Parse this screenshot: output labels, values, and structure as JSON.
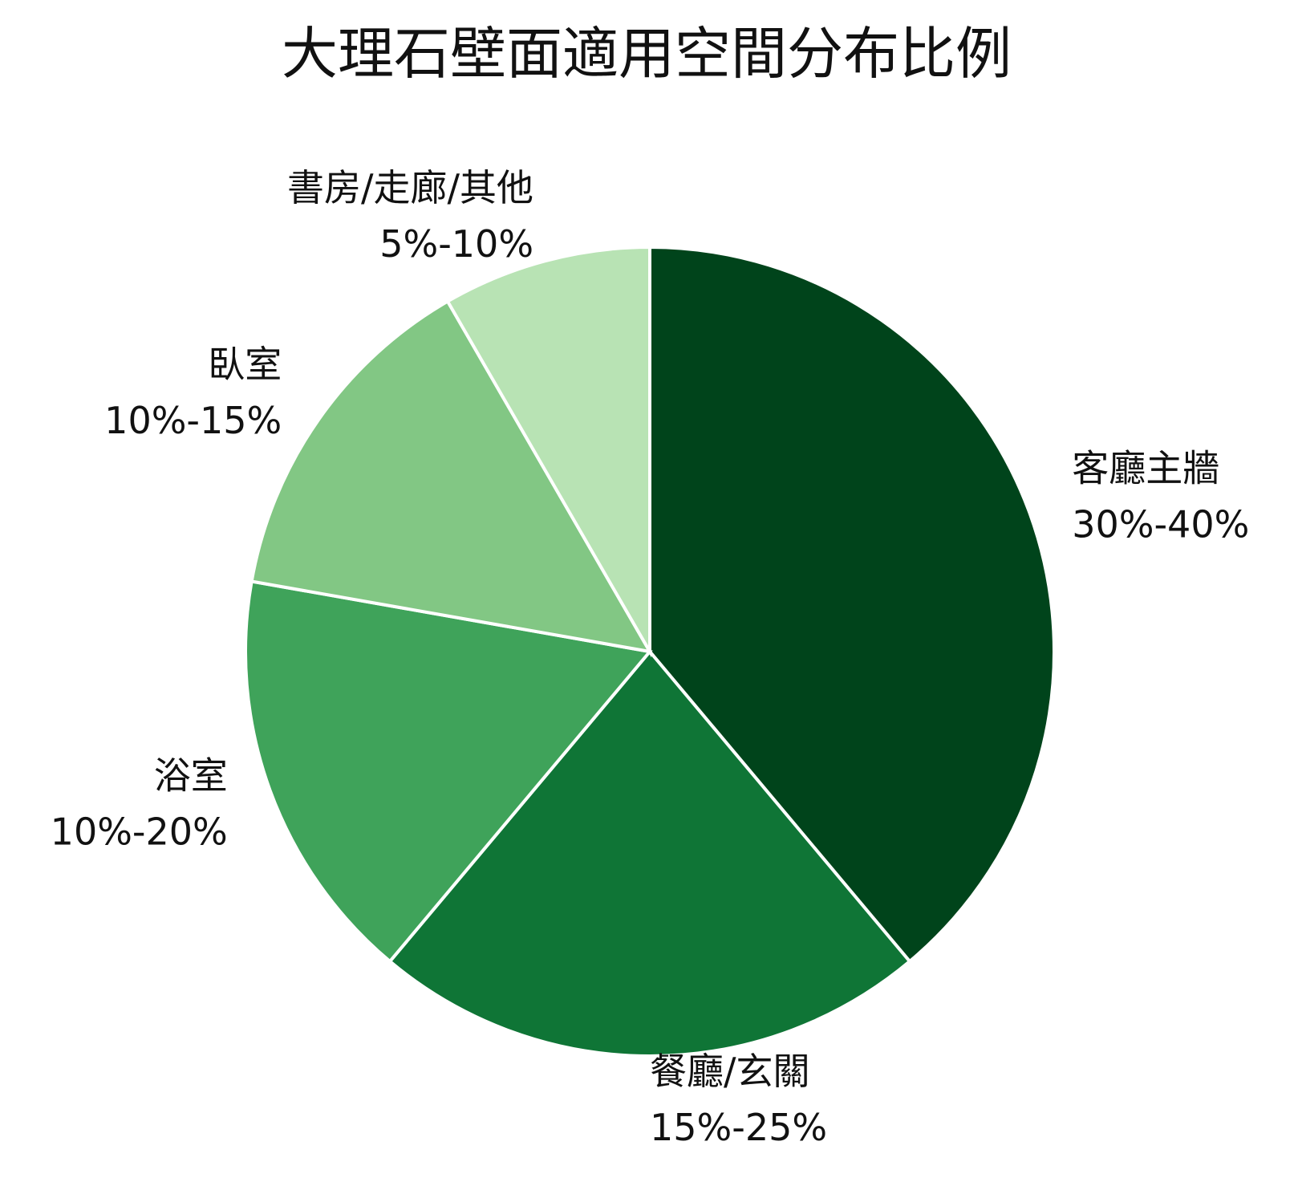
{
  "chart_data": {
    "type": "pie",
    "title": "大理石壁面適用空間分布比例",
    "categories": [
      "客廳主牆",
      "餐廳/玄關",
      "浴室",
      "臥室",
      "書房/走廊/其他"
    ],
    "values": [
      35,
      20,
      15,
      12.5,
      7.5
    ],
    "value_labels": [
      "30%-40%",
      "15%-25%",
      "10%-20%",
      "10%-15%",
      "5%-10%"
    ],
    "colors": [
      "#00441b",
      "#0f7536",
      "#3fa35a",
      "#82c784",
      "#b8e3b4"
    ]
  }
}
